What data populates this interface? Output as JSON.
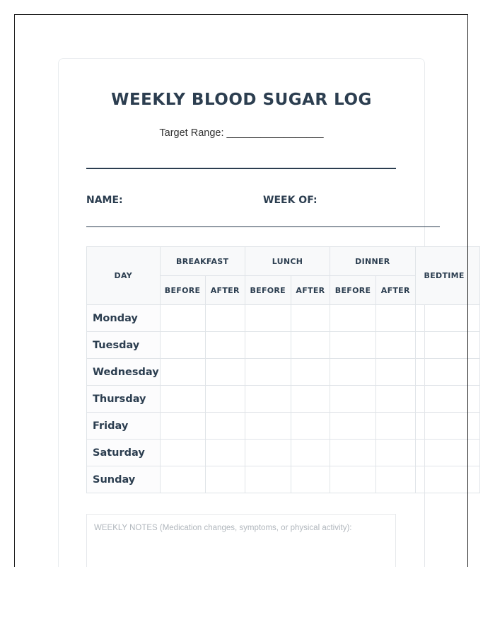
{
  "title": "WEEKLY BLOOD SUGAR LOG",
  "target_range_label": "Target Range: _________________",
  "name_label": "NAME:",
  "week_of_label": "WEEK OF:",
  "table": {
    "day_header": "DAY",
    "meals": [
      "BREAKFAST",
      "LUNCH",
      "DINNER"
    ],
    "before_label": "BEFORE",
    "after_label": "AFTER",
    "bedtime_header": "BEDTIME",
    "days": [
      "Monday",
      "Tuesday",
      "Wednesday",
      "Thursday",
      "Friday",
      "Saturday",
      "Sunday"
    ]
  },
  "notes_label": "WEEKLY NOTES (Medication changes, symptoms, or physical activity):"
}
